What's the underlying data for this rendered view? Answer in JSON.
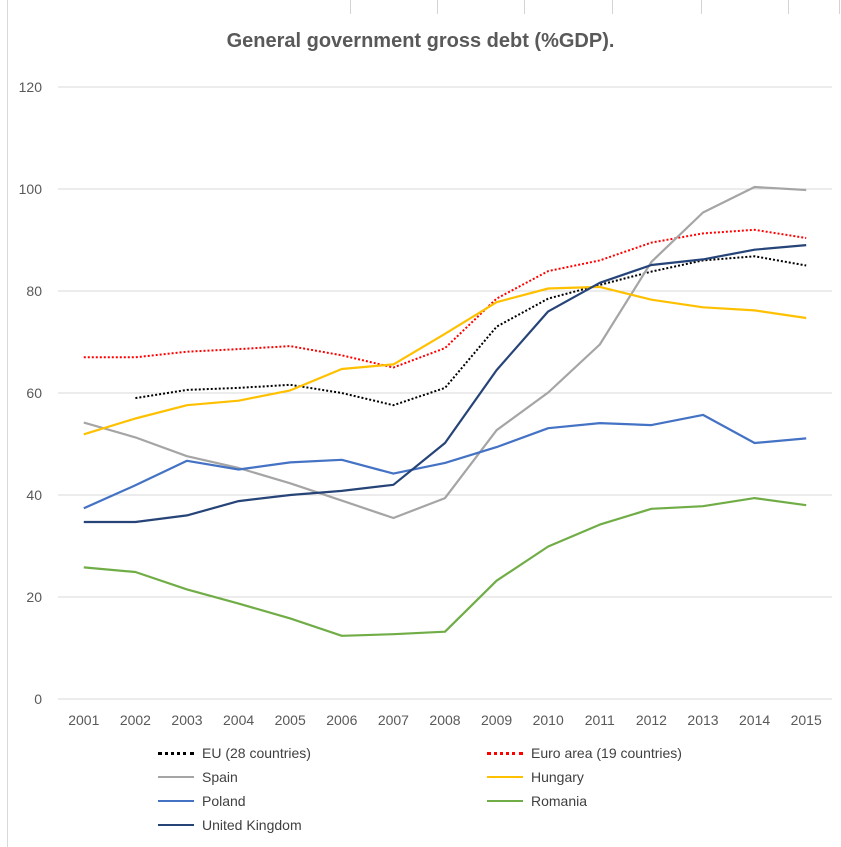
{
  "chart_data": {
    "type": "line",
    "title": "General government gross debt (%GDP).",
    "xlabel": "",
    "ylabel": "",
    "ylim": [
      0,
      120
    ],
    "yticks": [
      0,
      20,
      40,
      60,
      80,
      100,
      120
    ],
    "grid": true,
    "legend_position": "bottom",
    "categories": [
      "2001",
      "2002",
      "2003",
      "2004",
      "2005",
      "2006",
      "2007",
      "2008",
      "2009",
      "2010",
      "2011",
      "2012",
      "2013",
      "2014",
      "2015"
    ],
    "series": [
      {
        "name": "EU (28 countries)",
        "color": "#000000",
        "dash": "dotted",
        "values": [
          null,
          59.0,
          60.6,
          61.0,
          61.6,
          60.0,
          57.6,
          61.0,
          73.0,
          78.5,
          81.2,
          83.8,
          86.0,
          86.8,
          85.0
        ]
      },
      {
        "name": "Euro area (19 countries)",
        "color": "#ff0000",
        "dash": "dotted",
        "values": [
          67.0,
          67.0,
          68.1,
          68.6,
          69.2,
          67.4,
          65.0,
          68.8,
          78.5,
          83.9,
          86.0,
          89.5,
          91.3,
          92.0,
          90.4
        ]
      },
      {
        "name": "Spain",
        "color": "#a5a5a5",
        "dash": "solid",
        "values": [
          54.2,
          51.3,
          47.6,
          45.3,
          42.3,
          38.9,
          35.5,
          39.4,
          52.7,
          60.1,
          69.5,
          85.7,
          95.4,
          100.4,
          99.8
        ]
      },
      {
        "name": "Hungary",
        "color": "#ffc000",
        "dash": "solid",
        "values": [
          51.9,
          55.0,
          57.6,
          58.5,
          60.5,
          64.7,
          65.6,
          71.6,
          77.8,
          80.5,
          80.8,
          78.3,
          76.8,
          76.2,
          74.7
        ]
      },
      {
        "name": "Poland",
        "color": "#4472c4",
        "dash": "solid",
        "values": [
          37.4,
          41.9,
          46.7,
          45.0,
          46.4,
          46.9,
          44.2,
          46.3,
          49.4,
          53.1,
          54.1,
          53.7,
          55.7,
          50.2,
          51.1
        ]
      },
      {
        "name": "Romania",
        "color": "#70ad47",
        "dash": "solid",
        "values": [
          25.8,
          24.9,
          21.5,
          18.7,
          15.8,
          12.4,
          12.7,
          13.2,
          23.2,
          29.9,
          34.2,
          37.3,
          37.8,
          39.4,
          38.0
        ]
      },
      {
        "name": "United Kingdom",
        "color": "#264478",
        "dash": "solid",
        "values": [
          34.7,
          34.7,
          36.0,
          38.8,
          40.0,
          40.8,
          42.0,
          50.2,
          64.5,
          76.0,
          81.6,
          85.1,
          86.2,
          88.1,
          89.0
        ]
      }
    ]
  }
}
